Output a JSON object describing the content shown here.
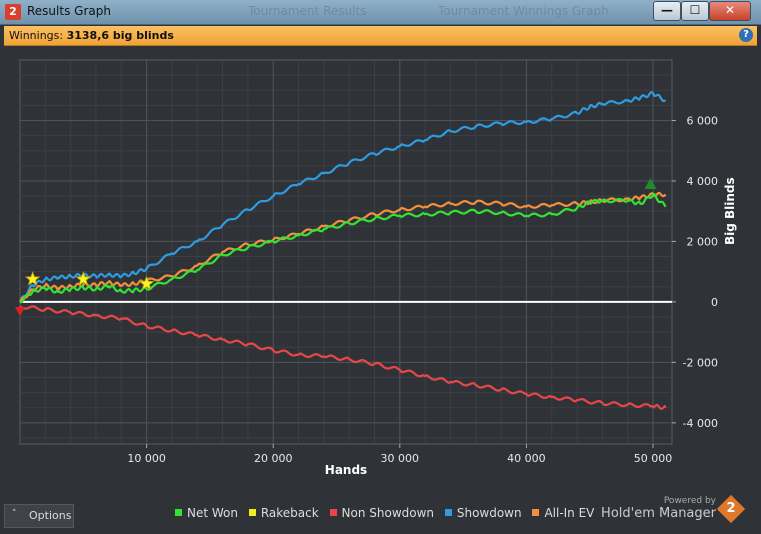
{
  "window": {
    "title": "Results Graph",
    "app_icon": "2",
    "background_tabs": [
      "Tournament Results",
      "Tournament Winnings Graph"
    ],
    "controls": {
      "minimize": "—",
      "maximize": "☐",
      "close": "✕"
    }
  },
  "winnings": {
    "label": "Winnings: ",
    "value": "3138,6 big blinds",
    "help": "?"
  },
  "options": {
    "label": "Options",
    "chevron": "˄"
  },
  "branding": {
    "powered_by": "Powered by",
    "name": "Hold'em Manager",
    "logo": "2"
  },
  "colors": {
    "net_won": "#33e233",
    "rakeback": "#f2ee22",
    "non_showdown": "#e8474a",
    "showdown": "#2f9be0",
    "all_in_ev": "#f2903c",
    "zero_line": "#ffffff"
  },
  "chart_data": {
    "type": "line",
    "title": "",
    "xlabel": "Hands",
    "ylabel": "Big Blinds",
    "xlim": [
      0,
      51500
    ],
    "ylim": [
      -4700,
      8000
    ],
    "x_ticks": [
      10000,
      20000,
      30000,
      40000,
      50000
    ],
    "x_tick_labels": [
      "10 000",
      "20 000",
      "30 000",
      "40 000",
      "50 000"
    ],
    "y_ticks": [
      -4000,
      -2000,
      0,
      2000,
      4000,
      6000
    ],
    "y_tick_labels": [
      "-4 000",
      "-2 000",
      "0",
      "2 000",
      "4 000",
      "6 000"
    ],
    "grid": true,
    "legend_position": "bottom",
    "series": [
      {
        "name": "Net Won",
        "color": "#33e233",
        "x": [
          0,
          1000,
          2000,
          3000,
          4000,
          5000,
          6000,
          7000,
          8000,
          9000,
          10000,
          12000,
          14000,
          16000,
          18000,
          20000,
          22000,
          24000,
          26000,
          28000,
          30000,
          32000,
          34000,
          36000,
          38000,
          40000,
          42000,
          44000,
          45000,
          46000,
          48000,
          49000,
          50000,
          51000
        ],
        "y": [
          0,
          350,
          450,
          330,
          420,
          470,
          420,
          520,
          350,
          380,
          430,
          750,
          1050,
          1550,
          1800,
          2000,
          2200,
          2400,
          2600,
          2750,
          2850,
          2900,
          2950,
          3000,
          2950,
          2850,
          2900,
          3100,
          3300,
          3350,
          3350,
          3250,
          3550,
          3150
        ]
      },
      {
        "name": "Showdown",
        "color": "#2f9be0",
        "x": [
          0,
          1000,
          2000,
          3000,
          4000,
          5000,
          6000,
          7000,
          8000,
          9000,
          10000,
          12000,
          14000,
          16000,
          18000,
          20000,
          22000,
          24000,
          26000,
          28000,
          30000,
          32000,
          34000,
          36000,
          38000,
          40000,
          42000,
          44000,
          45000,
          46000,
          48000,
          49000,
          50000,
          51000
        ],
        "y": [
          0,
          550,
          750,
          800,
          850,
          880,
          850,
          900,
          850,
          950,
          1100,
          1600,
          2000,
          2550,
          3050,
          3500,
          3900,
          4250,
          4600,
          4900,
          5150,
          5350,
          5650,
          5800,
          5900,
          5950,
          6050,
          6250,
          6450,
          6550,
          6650,
          6750,
          6900,
          6650
        ]
      },
      {
        "name": "Non Showdown",
        "color": "#e8474a",
        "x": [
          0,
          2000,
          4000,
          6000,
          8000,
          10000,
          12000,
          14000,
          16000,
          18000,
          20000,
          22000,
          24000,
          26000,
          28000,
          30000,
          32000,
          34000,
          36000,
          38000,
          40000,
          42000,
          44000,
          46000,
          48000,
          50000,
          51000
        ],
        "y": [
          -150,
          -250,
          -350,
          -450,
          -550,
          -800,
          -950,
          -1100,
          -1250,
          -1400,
          -1600,
          -1750,
          -1800,
          -1900,
          -2050,
          -2250,
          -2450,
          -2650,
          -2750,
          -2900,
          -3050,
          -3150,
          -3250,
          -3350,
          -3400,
          -3450,
          -3500
        ]
      },
      {
        "name": "All-In EV",
        "color": "#f2903c",
        "x": [
          0,
          1000,
          2000,
          3000,
          4000,
          5000,
          6000,
          7000,
          8000,
          9000,
          10000,
          12000,
          14000,
          16000,
          18000,
          20000,
          22000,
          24000,
          26000,
          28000,
          30000,
          32000,
          34000,
          36000,
          38000,
          40000,
          42000,
          44000,
          45000,
          46000,
          48000,
          49000,
          50000,
          51000
        ],
        "y": [
          0,
          400,
          550,
          450,
          520,
          570,
          560,
          650,
          550,
          600,
          700,
          850,
          1200,
          1650,
          1900,
          2050,
          2250,
          2500,
          2700,
          2900,
          3050,
          3150,
          3250,
          3300,
          3250,
          3150,
          3200,
          3250,
          3300,
          3350,
          3400,
          3450,
          3550,
          3550
        ]
      },
      {
        "name": "Rakeback",
        "color": "#f2ee22",
        "x": [],
        "y": []
      }
    ],
    "markers": [
      {
        "type": "star",
        "x": 1000,
        "y": 750
      },
      {
        "type": "star",
        "x": 5000,
        "y": 750
      },
      {
        "type": "star",
        "x": 10000,
        "y": 600
      },
      {
        "type": "triangle-down",
        "x": 0,
        "y": -300
      },
      {
        "type": "triangle-up",
        "x": 49800,
        "y": 3900
      }
    ]
  }
}
